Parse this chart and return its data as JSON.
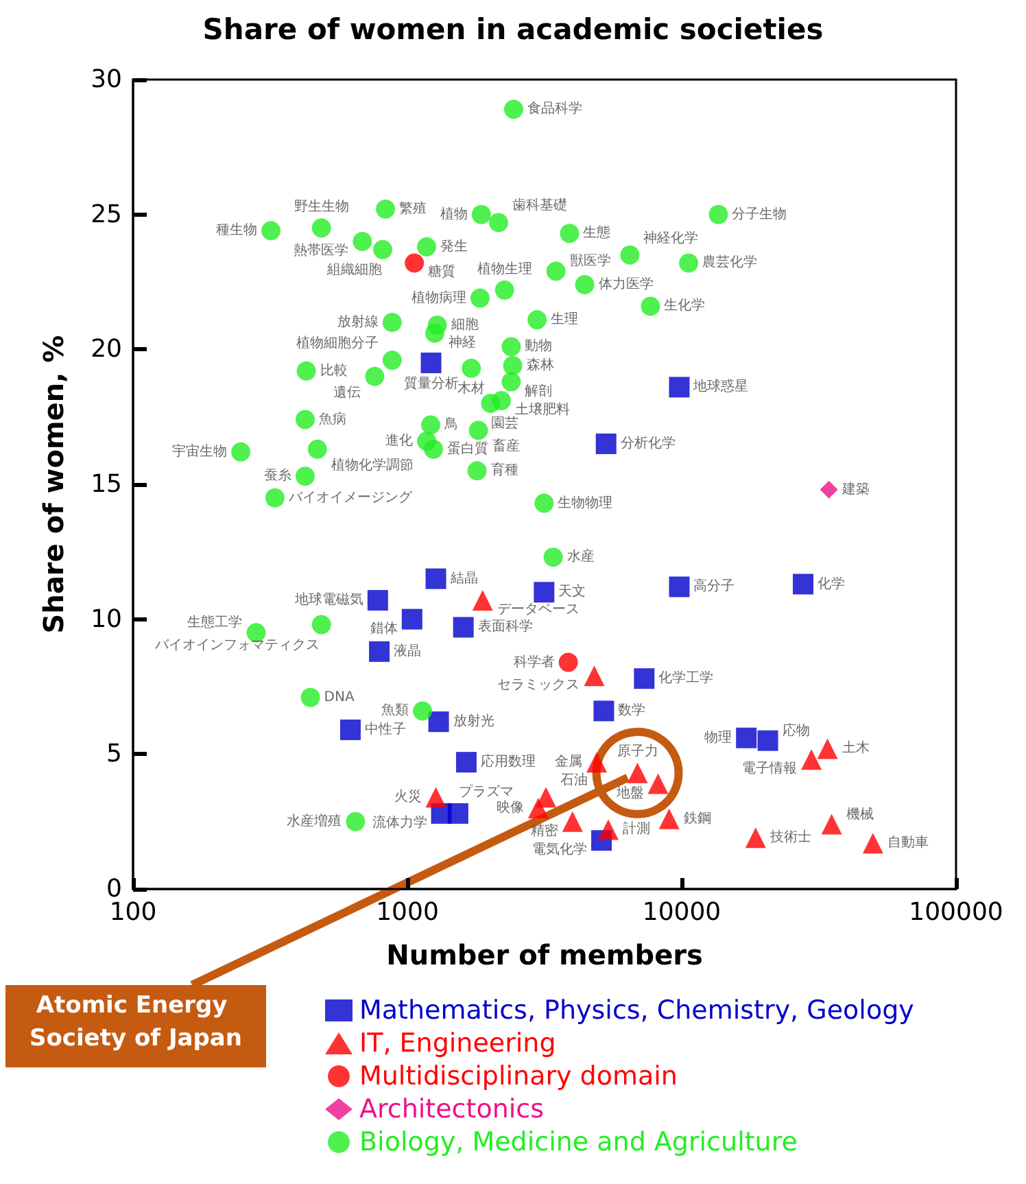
{
  "chart_data": {
    "type": "scatter",
    "title": "Share of women in academic societies",
    "xlabel": "Number of members",
    "ylabel": "Share of women, %",
    "log": "x",
    "xlim": [
      100,
      100000
    ],
    "xticks": [
      100,
      1000,
      10000,
      100000
    ],
    "ylim": [
      0,
      30
    ],
    "yticks": [
      0,
      5,
      10,
      15,
      20,
      25,
      30
    ],
    "grid": false,
    "legend": "bottom",
    "annotations": [
      {
        "text": "Atomic Energy Society of Japan",
        "x": 6900,
        "y": 4.3
      }
    ],
    "series": [
      {
        "name": "Mathematics, Physics, Chemistry, Geology",
        "color": "#0000cc",
        "marker": "square",
        "x": [
          1220,
          9800,
          5300,
          1270,
          780,
          1040,
          1600,
          3150,
          9800,
          27700,
          790,
          7300,
          5200,
          1300,
          620,
          17200,
          20600,
          1640,
          1330,
          1530,
          5100
        ],
        "values": [
          19.5,
          18.6,
          16.5,
          11.5,
          10.7,
          10.0,
          9.7,
          11.0,
          11.2,
          11.3,
          8.8,
          7.8,
          6.6,
          6.2,
          5.9,
          5.6,
          5.5,
          4.7,
          2.8,
          2.8,
          1.8
        ],
        "value_labels": [
          "質量分析",
          "地球惑星",
          "分析化学",
          "結晶",
          "地球電磁気",
          "錯体",
          "表面科学",
          "天文",
          "高分子",
          "化学",
          "液晶",
          "化学工学",
          "数学",
          "放射光",
          "中性子",
          "物理",
          "応物",
          "応用数理",
          "流体力学",
          "プラズマ",
          "電気化学"
        ]
      },
      {
        "name": "IT, Engineering",
        "color": "#ff0000",
        "marker": "triangle",
        "x": [
          1880,
          4800,
          4900,
          6900,
          8200,
          1270,
          3200,
          3000,
          4000,
          5400,
          9000,
          18600,
          35200,
          49800,
          29700,
          34000
        ],
        "values": [
          10.7,
          7.9,
          4.7,
          4.3,
          3.9,
          3.4,
          3.4,
          3.0,
          2.5,
          2.2,
          2.6,
          1.9,
          2.4,
          1.7,
          4.8,
          5.2
        ],
        "value_labels": [
          "データベース",
          "セラミックス",
          "金属",
          "原子力",
          "地盤",
          "火災",
          "石油",
          "映像",
          "精密",
          "計測",
          "鉄鋼",
          "技術士",
          "機械",
          "自動車",
          "電子情報",
          "土木"
        ]
      },
      {
        "name": "Multidisciplinary domain",
        "color": "#ff0000",
        "marker": "circle",
        "x": [
          1060,
          3860
        ],
        "values": [
          23.2,
          8.4
        ],
        "value_labels": [
          "糖質",
          "科学者"
        ]
      },
      {
        "name": "Architectonics",
        "color": "#ee1188",
        "marker": "diamond",
        "x": [
          34400
        ],
        "values": [
          14.8
        ],
        "value_labels": [
          "建築"
        ]
      },
      {
        "name": "Biology, Medicine and Agriculture",
        "color": "#22ee22",
        "marker": "circle",
        "x": [
          2440,
          318,
          486,
          832,
          685,
          813,
          1175,
          1860,
          2150,
          3900,
          6470,
          13600,
          10600,
          3480,
          4430,
          7690,
          1840,
          2260,
          2970,
          1285,
          1258,
          880,
          2390,
          880,
          428,
          760,
          1710,
          2420,
          2390,
          2010,
          2200,
          424,
          1216,
          1815,
          470,
          247,
          1175,
          1245,
          1795,
          424,
          329,
          3150,
          3400,
          486,
          281,
          443,
          1135,
          647
        ],
        "values": [
          28.9,
          24.4,
          24.5,
          25.2,
          24.0,
          23.7,
          23.8,
          25.0,
          24.7,
          24.3,
          23.5,
          25.0,
          23.2,
          22.9,
          22.4,
          21.6,
          21.9,
          22.2,
          21.1,
          20.9,
          20.6,
          21.0,
          20.1,
          19.6,
          19.2,
          19.0,
          19.3,
          19.4,
          18.8,
          18.0,
          18.1,
          17.4,
          17.2,
          17.0,
          16.3,
          16.2,
          16.6,
          16.3,
          15.5,
          15.3,
          14.5,
          14.3,
          12.3,
          9.8,
          9.5,
          7.1,
          6.6,
          2.5
        ],
        "value_labels": [
          "食品科学",
          "種生物",
          "野生生物",
          "繁殖",
          "熱帯医学",
          "組織細胞",
          "発生",
          "植物",
          "歯科基礎",
          "生態",
          "神経化学",
          "分子生物",
          "農芸化学",
          "獣医学",
          "体力医学",
          "生化学",
          "植物病理",
          "植物生理",
          "生理",
          "細胞",
          "神経",
          "放射線",
          "動物",
          "植物細胞分子",
          "比較",
          "遺伝",
          "木材",
          "森林",
          "解剖",
          "園芸",
          "土壌肥料",
          "魚病",
          "鳥",
          "畜産",
          "植物化学調節",
          "宇宙生物",
          "進化",
          "蛋白質",
          "育種",
          "蚕糸",
          "バイオイメージング",
          "生物物理",
          "水産",
          "バイオインフォマティクス",
          "生態工学",
          "DNA",
          "魚類",
          "水産増殖"
        ]
      }
    ]
  }
}
